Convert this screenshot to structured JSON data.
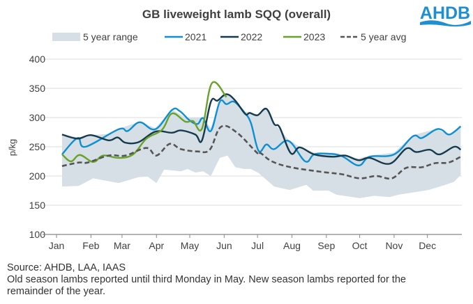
{
  "logo_text": "AHDB",
  "chart_data": {
    "type": "line",
    "title": "GB liveweight lamb SQQ (overall)",
    "xlabel": "",
    "ylabel": "p/kg",
    "ylim": [
      100,
      400
    ],
    "yticks": [
      100,
      150,
      200,
      250,
      300,
      350,
      400
    ],
    "xticks": [
      "Jan",
      "Feb",
      "Mar",
      "Apr",
      "May",
      "Jun",
      "Jul",
      "Aug",
      "Sep",
      "Oct",
      "Nov",
      "Dec"
    ],
    "grid": "horizontal",
    "legend_position": "top",
    "colors": {
      "range": "#d6dfe5",
      "2021": "#0e8fd3",
      "2022": "#153a4e",
      "2023": "#69a22a",
      "avg": "#555555"
    },
    "range": {
      "name": "5 year range",
      "upper": [
        [
          "01-06",
          272
        ],
        [
          "01-20",
          266
        ],
        [
          "02-01",
          270
        ],
        [
          "02-17",
          272
        ],
        [
          "02-26",
          281
        ],
        [
          "03-17",
          293
        ],
        [
          "03-31",
          282
        ],
        [
          "04-15",
          314
        ],
        [
          "04-27",
          300
        ],
        [
          "05-13",
          300
        ],
        [
          "05-20",
          282
        ],
        [
          "05-28",
          330
        ],
        [
          "06-03",
          342
        ],
        [
          "06-11",
          330
        ],
        [
          "06-20",
          310
        ],
        [
          "07-02",
          305
        ],
        [
          "07-09",
          316
        ],
        [
          "07-16",
          290
        ],
        [
          "07-29",
          262
        ],
        [
          "08-08",
          250
        ],
        [
          "08-21",
          240
        ],
        [
          "09-07",
          240
        ],
        [
          "09-30",
          230
        ],
        [
          "10-10",
          235
        ],
        [
          "11-01",
          240
        ],
        [
          "11-18",
          270
        ],
        [
          "12-08",
          280
        ],
        [
          "12-21",
          272
        ],
        [
          "12-31",
          286
        ]
      ],
      "lower": [
        [
          "01-06",
          182
        ],
        [
          "01-21",
          183
        ],
        [
          "02-03",
          196
        ],
        [
          "02-26",
          188
        ],
        [
          "03-16",
          198
        ],
        [
          "03-24",
          199
        ],
        [
          "04-01",
          188
        ],
        [
          "04-08",
          211
        ],
        [
          "04-23",
          208
        ],
        [
          "04-29",
          212
        ],
        [
          "05-06",
          206
        ],
        [
          "05-13",
          208
        ],
        [
          "05-20",
          200
        ],
        [
          "05-28",
          231
        ],
        [
          "06-04",
          235
        ],
        [
          "06-11",
          215
        ],
        [
          "06-19",
          212
        ],
        [
          "06-25",
          212
        ],
        [
          "07-02",
          205
        ],
        [
          "07-16",
          182
        ],
        [
          "07-30",
          176
        ],
        [
          "08-14",
          185
        ],
        [
          "08-20",
          175
        ],
        [
          "09-03",
          175
        ],
        [
          "09-10",
          168
        ],
        [
          "10-01",
          162
        ],
        [
          "10-14",
          166
        ],
        [
          "10-28",
          164
        ],
        [
          "11-05",
          168
        ],
        [
          "12-02",
          176
        ],
        [
          "12-14",
          183
        ],
        [
          "12-25",
          190
        ],
        [
          "12-31",
          202
        ]
      ]
    },
    "series": [
      {
        "name": "2021",
        "key": "2021",
        "dashed": false,
        "points": [
          [
            "01-06",
            237
          ],
          [
            "01-20",
            265
          ],
          [
            "01-27",
            250
          ],
          [
            "02-26",
            280
          ],
          [
            "03-06",
            277
          ],
          [
            "03-17",
            292
          ],
          [
            "03-31",
            280
          ],
          [
            "04-15",
            313
          ],
          [
            "04-22",
            311
          ],
          [
            "05-01",
            295
          ],
          [
            "05-08",
            289
          ],
          [
            "05-13",
            299
          ],
          [
            "05-20",
            277
          ],
          [
            "05-28",
            327
          ],
          [
            "06-03",
            323
          ],
          [
            "06-10",
            327
          ],
          [
            "06-19",
            309
          ],
          [
            "06-25",
            291
          ],
          [
            "07-02",
            243
          ],
          [
            "07-09",
            254
          ],
          [
            "07-16",
            246
          ],
          [
            "07-29",
            260
          ],
          [
            "08-13",
            225
          ],
          [
            "08-21",
            237
          ],
          [
            "09-03",
            238
          ],
          [
            "09-15",
            234
          ],
          [
            "09-30",
            218
          ],
          [
            "10-10",
            233
          ],
          [
            "11-01",
            237
          ],
          [
            "11-18",
            268
          ],
          [
            "11-26",
            265
          ],
          [
            "12-08",
            279
          ],
          [
            "12-14",
            279
          ],
          [
            "12-21",
            271
          ],
          [
            "12-31",
            285
          ]
        ]
      },
      {
        "name": "2022",
        "key": "2022",
        "dashed": false,
        "points": [
          [
            "01-06",
            271
          ],
          [
            "01-20",
            264
          ],
          [
            "02-01",
            270
          ],
          [
            "02-17",
            261
          ],
          [
            "02-25",
            266
          ],
          [
            "03-04",
            257
          ],
          [
            "03-16",
            258
          ],
          [
            "03-31",
            276
          ],
          [
            "04-15",
            274
          ],
          [
            "04-23",
            278
          ],
          [
            "05-06",
            271
          ],
          [
            "05-12",
            261
          ],
          [
            "05-20",
            327
          ],
          [
            "05-26",
            329
          ],
          [
            "06-03",
            340
          ],
          [
            "06-11",
            329
          ],
          [
            "06-20",
            306
          ],
          [
            "06-24",
            308
          ],
          [
            "07-01",
            304
          ],
          [
            "07-09",
            315
          ],
          [
            "07-16",
            289
          ],
          [
            "07-21",
            283
          ],
          [
            "07-31",
            239
          ],
          [
            "08-08",
            249
          ],
          [
            "08-21",
            237
          ],
          [
            "09-07",
            233
          ],
          [
            "09-18",
            235
          ],
          [
            "09-30",
            227
          ],
          [
            "10-10",
            231
          ],
          [
            "10-28",
            221
          ],
          [
            "11-12",
            247
          ],
          [
            "11-21",
            241
          ],
          [
            "12-03",
            245
          ],
          [
            "12-12",
            237
          ],
          [
            "12-25",
            250
          ],
          [
            "12-31",
            245
          ]
        ]
      },
      {
        "name": "2023",
        "key": "2023",
        "dashed": false,
        "points": [
          [
            "01-06",
            237
          ],
          [
            "01-14",
            225
          ],
          [
            "01-22",
            236
          ],
          [
            "02-03",
            224
          ],
          [
            "02-12",
            235
          ],
          [
            "02-26",
            231
          ],
          [
            "03-11",
            237
          ],
          [
            "03-23",
            264
          ],
          [
            "04-06",
            279
          ],
          [
            "04-15",
            307
          ],
          [
            "04-27",
            293
          ],
          [
            "05-04",
            294
          ],
          [
            "05-12",
            281
          ],
          [
            "05-21",
            359
          ],
          [
            "06-03",
            335
          ]
        ]
      },
      {
        "name": "5 year avg",
        "key": "avg",
        "dashed": true,
        "points": [
          [
            "01-06",
            217
          ],
          [
            "01-21",
            223
          ],
          [
            "01-29",
            223
          ],
          [
            "02-17",
            235
          ],
          [
            "03-04",
            235
          ],
          [
            "03-23",
            248
          ],
          [
            "04-01",
            235
          ],
          [
            "04-13",
            255
          ],
          [
            "04-23",
            246
          ],
          [
            "05-08",
            242
          ],
          [
            "05-19",
            245
          ],
          [
            "05-29",
            284
          ],
          [
            "06-12",
            275
          ],
          [
            "07-01",
            239
          ],
          [
            "07-04",
            239
          ],
          [
            "07-14",
            225
          ],
          [
            "07-31",
            215
          ],
          [
            "08-28",
            207
          ],
          [
            "09-15",
            203
          ],
          [
            "10-01",
            196
          ],
          [
            "10-16",
            200
          ],
          [
            "10-30",
            196
          ],
          [
            "11-12",
            214
          ],
          [
            "11-26",
            215
          ],
          [
            "12-08",
            222
          ],
          [
            "12-20",
            223
          ],
          [
            "12-31",
            233
          ]
        ]
      }
    ]
  },
  "footnotes": {
    "source": "Source: AHDB, LAA, IAAS",
    "line1": "Old season lambs reported until third Monday in May. New season lambs reported for the",
    "line2": "remainder of the year."
  }
}
